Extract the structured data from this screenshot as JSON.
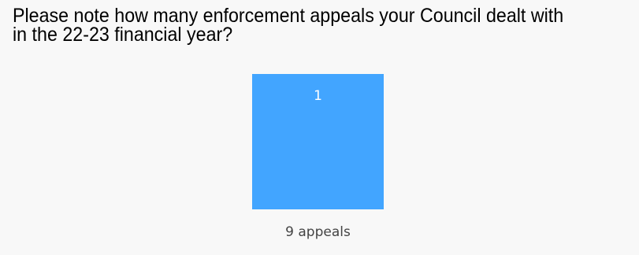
{
  "question": {
    "title": "Please note how many enforcement appeals your Council dealt with in the 22-23 financial year?"
  },
  "colors": {
    "bar": "#42a5ff",
    "data_label": "#ffffff",
    "category_label": "#444444",
    "background": "#f8f8f8"
  },
  "chart_data": {
    "type": "bar",
    "categories": [
      "9 appeals"
    ],
    "values": [
      1
    ],
    "data_labels": [
      "1"
    ],
    "title": "",
    "xlabel": "",
    "ylabel": "",
    "ylim": [
      0,
      1
    ],
    "grid": false,
    "legend": "none"
  }
}
